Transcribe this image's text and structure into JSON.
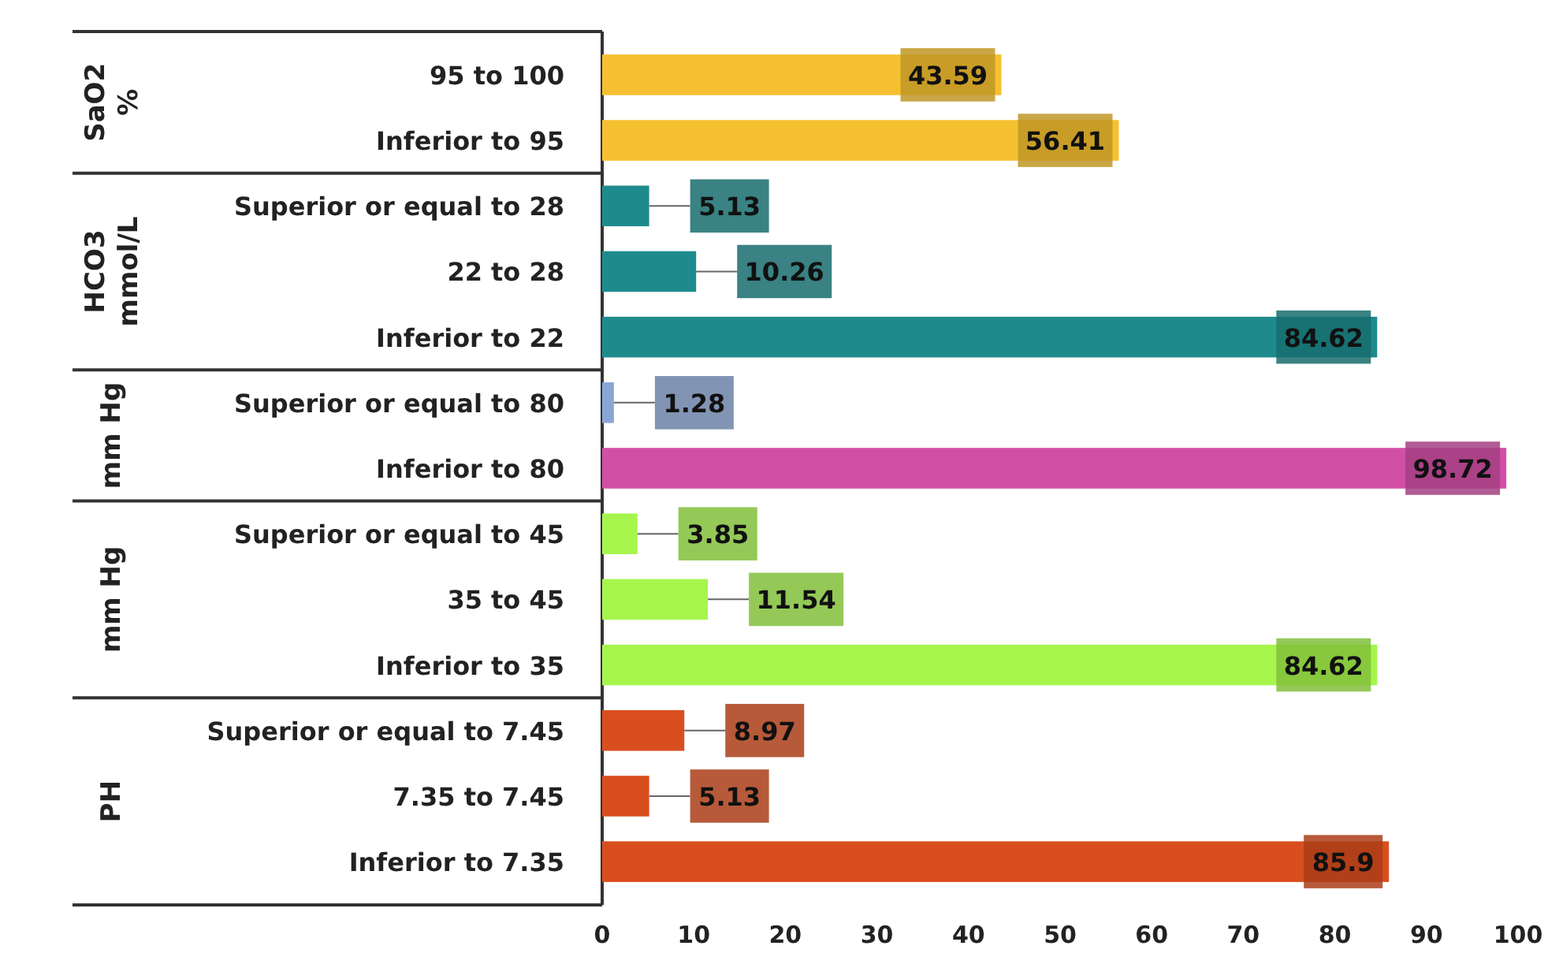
{
  "chart_data": {
    "type": "bar",
    "orientation": "horizontal",
    "categories": [
      "95 to 100",
      "Inferior to 95",
      "Superior or equal to 28",
      "22 to 28",
      "Inferior to 22",
      "Superior or equal to 80",
      "Inferior to 80",
      "Superior or equal to 45",
      "35 to 45",
      "Inferior to 35",
      "Superior or equal to 7.45",
      "7.35 to 7.45",
      "Inferior to 7.35"
    ],
    "values": [
      43.59,
      56.41,
      5.13,
      10.26,
      84.62,
      1.28,
      98.72,
      3.85,
      11.54,
      84.62,
      8.97,
      5.13,
      85.9
    ],
    "colors": [
      "#f5c131",
      "#f5c131",
      "#1e8a8c",
      "#1e8a8c",
      "#1e8a8c",
      "#8aa6d6",
      "#d24fa6",
      "#a6f54c",
      "#a6f54c",
      "#a6f54c",
      "#d94e1f",
      "#d94e1f",
      "#d94e1f"
    ],
    "xlim": [
      0,
      100
    ],
    "xticks": [
      0,
      10,
      20,
      30,
      40,
      50,
      60,
      70,
      80,
      90,
      100
    ],
    "data_labels": true,
    "annotations": [
      "SaO2\n%",
      "HCO3\nmmol/L",
      "mm Hg",
      "mm Hg",
      "PH"
    ]
  }
}
